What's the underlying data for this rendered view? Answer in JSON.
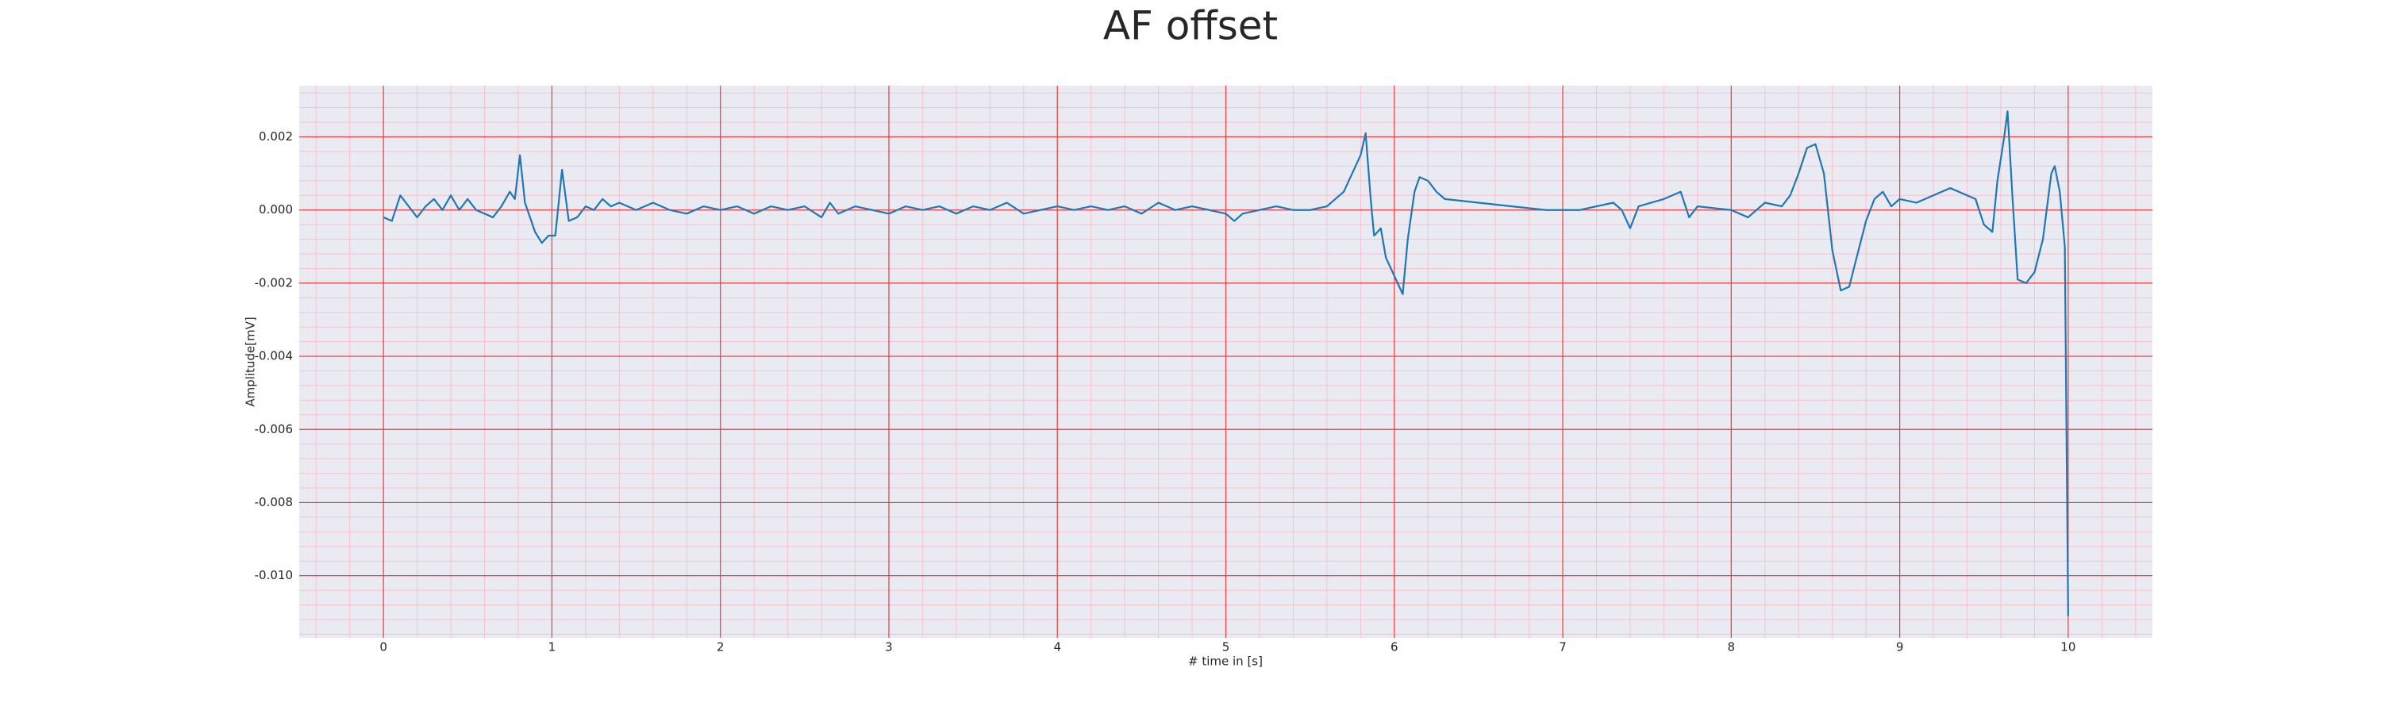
{
  "chart_data": {
    "type": "line",
    "title": "AF offset",
    "xlabel": "# time in [s]",
    "ylabel": "Amplitude[mV]",
    "xlim": [
      -0.5,
      10.5
    ],
    "ylim": [
      -0.0117,
      0.0034
    ],
    "xticks": [
      0,
      1,
      2,
      3,
      4,
      5,
      6,
      7,
      8,
      9,
      10
    ],
    "yticks": [
      0.002,
      {
        "value": 0,
        "label": "0.000"
      },
      -0.002,
      -0.004,
      -0.006,
      -0.008,
      {
        "value": -0.01,
        "label": "-0.010"
      }
    ],
    "grid": true,
    "minor_grid": true,
    "series": [
      {
        "color": "#1f77b4",
        "x": [
          0,
          0.05,
          0.1,
          0.15,
          0.2,
          0.25,
          0.3,
          0.35,
          0.4,
          0.45,
          0.5,
          0.55,
          0.6,
          0.65,
          0.7,
          0.75,
          0.78,
          0.81,
          0.84,
          0.9,
          0.94,
          0.98,
          1.02,
          1.06,
          1.1,
          1.15,
          1.2,
          1.25,
          1.3,
          1.35,
          1.4,
          1.5,
          1.6,
          1.7,
          1.8,
          1.9,
          2.0,
          2.1,
          2.2,
          2.3,
          2.4,
          2.5,
          2.6,
          2.65,
          2.7,
          2.8,
          2.9,
          3.0,
          3.1,
          3.2,
          3.3,
          3.4,
          3.5,
          3.6,
          3.7,
          3.8,
          3.9,
          4.0,
          4.1,
          4.2,
          4.3,
          4.4,
          4.5,
          4.6,
          4.7,
          4.8,
          4.9,
          5.0,
          5.05,
          5.1,
          5.2,
          5.3,
          5.4,
          5.5,
          5.6,
          5.7,
          5.8,
          5.83,
          5.86,
          5.88,
          5.92,
          5.95,
          6.0,
          6.05,
          6.08,
          6.12,
          6.15,
          6.2,
          6.25,
          6.3,
          6.5,
          6.7,
          6.9,
          7.1,
          7.3,
          7.35,
          7.4,
          7.45,
          7.6,
          7.7,
          7.75,
          7.8,
          8.0,
          8.1,
          8.2,
          8.3,
          8.35,
          8.4,
          8.45,
          8.5,
          8.55,
          8.6,
          8.65,
          8.7,
          8.75,
          8.8,
          8.85,
          8.9,
          8.95,
          9.0,
          9.1,
          9.2,
          9.3,
          9.4,
          9.45,
          9.5,
          9.55,
          9.58,
          9.62,
          9.64,
          9.67,
          9.7,
          9.75,
          9.8,
          9.85,
          9.9,
          9.92,
          9.95,
          9.98,
          10.0
        ],
        "values": [
          -0.0002,
          -0.0003,
          0.0004,
          0.0001,
          -0.0002,
          0.0001,
          0.0003,
          0.0,
          0.0004,
          0.0,
          0.0003,
          0.0,
          -0.0001,
          -0.0002,
          0.0001,
          0.0005,
          0.0003,
          0.0015,
          0.0002,
          -0.0006,
          -0.0009,
          -0.0007,
          -0.0007,
          0.0011,
          -0.0003,
          -0.0002,
          0.0001,
          0.0,
          0.0003,
          0.0001,
          0.0002,
          0.0,
          0.0002,
          0.0,
          -0.0001,
          0.0001,
          0.0,
          0.0001,
          -0.0001,
          0.0001,
          0.0,
          0.0001,
          -0.0002,
          0.0002,
          -0.0001,
          0.0001,
          0.0,
          -0.0001,
          0.0001,
          0.0,
          0.0001,
          -0.0001,
          0.0001,
          0.0,
          0.0002,
          -0.0001,
          0.0,
          0.0001,
          0.0,
          0.0001,
          0.0,
          0.0001,
          -0.0001,
          0.0002,
          0.0,
          0.0001,
          0.0,
          -0.0001,
          -0.0003,
          -0.0001,
          0.0,
          0.0001,
          0.0,
          0.0,
          0.0001,
          0.0005,
          0.0015,
          0.0021,
          0.0003,
          -0.0007,
          -0.0005,
          -0.0013,
          -0.0018,
          -0.0023,
          -0.0008,
          0.0005,
          0.0009,
          0.0008,
          0.0005,
          0.0003,
          0.0002,
          0.0001,
          0.0,
          0.0,
          0.0002,
          0.0,
          -0.0005,
          0.0001,
          0.0003,
          0.0005,
          -0.0002,
          0.0001,
          0.0,
          -0.0002,
          0.0002,
          0.0001,
          0.0004,
          0.001,
          0.0017,
          0.0018,
          0.001,
          -0.0011,
          -0.0022,
          -0.0021,
          -0.0012,
          -0.0003,
          0.0003,
          0.0005,
          0.0001,
          0.0003,
          0.0002,
          0.0004,
          0.0006,
          0.0004,
          0.0003,
          -0.0004,
          -0.0006,
          0.0008,
          0.002,
          0.0027,
          0.0003,
          -0.0019,
          -0.002,
          -0.0017,
          -0.0008,
          0.001,
          0.0012,
          0.0005,
          -0.001,
          -0.0111
        ]
      }
    ]
  }
}
